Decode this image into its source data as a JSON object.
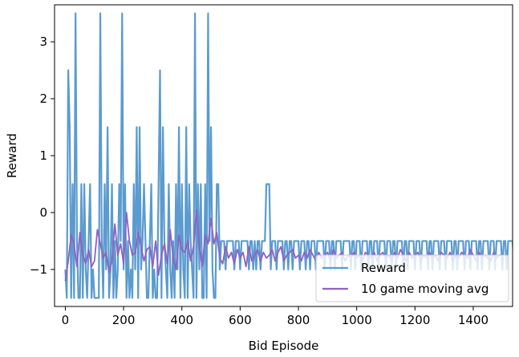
{
  "chart_data": {
    "type": "line",
    "xlabel": "Bid Episode",
    "ylabel": "Reward",
    "xlim": [
      -37,
      1535
    ],
    "ylim": [
      -1.65,
      3.65
    ],
    "xticks": [
      0,
      200,
      400,
      600,
      800,
      1000,
      1200,
      1400
    ],
    "yticks": [
      -1,
      0,
      1,
      2,
      3
    ],
    "legend_position": "lower-right",
    "colors": {
      "reward": "#5b9bcf",
      "moving_avg": "#9061c2"
    },
    "series": [
      {
        "name": "Reward",
        "x_start": 0,
        "x_step": 5,
        "values": [
          -1,
          -1.5,
          2.5,
          1.5,
          -1.5,
          0.5,
          -1.5,
          3.5,
          -0.5,
          -1.5,
          -1.5,
          0.5,
          -1.5,
          0.5,
          -1,
          -1.5,
          -0.5,
          0.5,
          -1.5,
          -1,
          -1.5,
          -1.5,
          -1.5,
          -1.5,
          3.5,
          -0.5,
          -1.5,
          0.5,
          -1,
          1.5,
          -1.5,
          -1,
          0.5,
          -1.5,
          -0.5,
          -1.5,
          -1,
          0.5,
          -0.5,
          3.5,
          -1,
          0.5,
          -1.5,
          -0.5,
          -1.5,
          -1,
          -1.5,
          0.5,
          -1,
          1.5,
          -1.5,
          1.5,
          -1,
          -0.5,
          0.5,
          -0.5,
          -1.5,
          -1.5,
          -0.5,
          0.5,
          -1.5,
          -1,
          -1.5,
          -1.5,
          0.5,
          2.5,
          -1.5,
          1.5,
          -0.5,
          -1,
          -1.5,
          0.5,
          -1,
          -1.5,
          -0.5,
          -1.5,
          0.5,
          -1,
          1.5,
          -1.5,
          0.5,
          -1,
          -1.5,
          1.5,
          -1.5,
          0.5,
          -0.5,
          -1,
          -1.5,
          3.5,
          -1.5,
          0.5,
          -1,
          0.5,
          -1.5,
          -1.5,
          0.5,
          -1.5,
          3.5,
          -0.5,
          1.5,
          -1,
          -1.5,
          -1.5,
          0.5,
          0.5,
          -1,
          -0.5,
          -0.5,
          -0.5,
          -1,
          -0.5,
          -0.5,
          -0.5,
          -0.5,
          -0.5,
          -1,
          -0.5,
          -0.5,
          -0.5,
          -1,
          -0.5,
          -0.5,
          -0.5,
          -0.5,
          -0.5,
          -1,
          -0.5,
          -0.5,
          -1,
          -0.5,
          -1,
          -0.5,
          -0.5,
          -1,
          -0.5,
          -0.5,
          -0.5,
          0.5,
          0.5,
          0.5,
          -1,
          -0.5,
          -0.5,
          -0.5,
          -1,
          -0.5,
          -0.5,
          -0.5,
          -0.5,
          -1,
          -0.5,
          -0.5,
          -1,
          -0.5,
          -0.5,
          -1,
          -0.5,
          -0.5,
          -0.5,
          -0.5,
          -1,
          -0.5,
          -0.5,
          -0.5,
          -1,
          -0.5,
          -0.5,
          -1,
          -0.5,
          -0.5,
          -0.5,
          -1,
          -0.5,
          -0.5,
          -0.5,
          -0.5,
          -0.5,
          -1,
          -0.5,
          -0.5,
          -0.5,
          -1,
          -0.5,
          -0.5,
          -1,
          -0.5,
          -0.5,
          -0.5,
          -0.5,
          -1,
          -0.5,
          -0.5,
          -0.5,
          -0.5,
          -0.5,
          -1,
          -0.5,
          -0.5,
          -1,
          -0.5,
          -0.5,
          -0.5,
          -1,
          -0.5,
          -0.5,
          -0.5,
          -0.5,
          -1,
          -0.5,
          -0.5,
          -1,
          -0.5,
          -0.5,
          -0.5,
          -1,
          -0.5,
          -0.5,
          -0.5,
          -0.5,
          -1,
          -0.5,
          -0.5,
          -0.5,
          -1,
          -0.5,
          -0.5,
          -1,
          -0.5,
          -0.5,
          -0.5,
          -0.5,
          -1,
          -0.5,
          -0.5,
          -1,
          -0.5,
          -0.5,
          -0.5,
          -0.5,
          -1,
          -0.5,
          -0.5,
          -0.5,
          -1,
          -0.5,
          -0.5,
          -0.5,
          -0.5,
          -1,
          -0.5,
          -0.5,
          -1,
          -0.5,
          -0.5,
          -0.5,
          -0.5,
          -1,
          -0.5,
          -0.5,
          -0.5,
          -1,
          -0.5,
          -0.5,
          -0.5,
          -0.5,
          -1,
          -0.5,
          -0.5,
          -1,
          -0.5,
          -0.5,
          -0.5,
          -0.5,
          -1,
          -0.5,
          -0.5,
          -0.5,
          -1,
          -0.5,
          -0.5,
          -0.5,
          -0.5,
          -1,
          -0.5,
          -0.5,
          -1,
          -0.5,
          -0.5,
          -0.5,
          -0.5,
          -1,
          -0.5,
          -0.5,
          -0.5,
          -1,
          -0.5,
          -0.5,
          -0.5,
          -0.5,
          -1,
          -0.5,
          -0.5,
          -1,
          -0.5,
          -0.5,
          -0.5,
          -0.5,
          -1,
          -0.5,
          -0.5,
          -0.5,
          -1,
          -0.5,
          -0.5,
          -0.5
        ]
      },
      {
        "name": "10 game moving avg",
        "x_start": 0,
        "x_step": 10,
        "values": [
          -1.2,
          -0.85,
          -0.4,
          -0.55,
          -0.95,
          -0.35,
          -0.75,
          -0.9,
          -0.65,
          -0.95,
          -0.85,
          -0.3,
          -0.55,
          -0.8,
          -0.7,
          -1.05,
          -0.85,
          -0.2,
          -0.75,
          -0.55,
          -0.9,
          0.0,
          -0.5,
          -0.75,
          -0.7,
          -0.35,
          -0.6,
          -0.85,
          -0.65,
          -0.6,
          -0.95,
          -0.5,
          -1.1,
          -0.75,
          -0.55,
          -0.9,
          -0.3,
          -0.8,
          -1.0,
          -0.4,
          -0.65,
          -0.7,
          -0.5,
          -0.85,
          -0.6,
          0.05,
          -0.6,
          -0.95,
          -0.4,
          -0.55,
          -0.1,
          -0.55,
          -0.35,
          -0.8,
          -0.9,
          -0.6,
          -0.8,
          -0.7,
          -0.9,
          -0.65,
          -0.8,
          -0.7,
          -0.95,
          -0.6,
          -0.85,
          -0.75,
          -0.65,
          -0.85,
          -0.7,
          -0.8,
          -0.75,
          -0.65,
          -0.85,
          -0.7,
          -0.6,
          -0.85,
          -0.75,
          -0.7,
          -0.65,
          -0.8,
          -0.75,
          -0.85,
          -0.7,
          -0.8,
          -0.65,
          -0.75,
          -0.85,
          -0.7,
          -0.8,
          -0.75,
          -0.7,
          -0.85,
          -0.65,
          -0.8,
          -0.75,
          -0.7,
          -0.85,
          -0.75,
          -0.8,
          -0.7,
          -0.8,
          -0.75,
          -0.85,
          -0.7,
          -0.75,
          -0.8,
          -0.7,
          -0.85,
          -0.75,
          -0.7,
          -0.8,
          -0.75,
          -0.85,
          -0.7,
          -0.8,
          -0.65,
          -0.75,
          -0.85,
          -0.7,
          -0.8,
          -0.75,
          -0.7,
          -0.85,
          -0.75,
          -0.8,
          -0.7,
          -0.8,
          -0.75,
          -0.85,
          -0.7,
          -0.75,
          -0.8,
          -0.7,
          -0.85,
          -0.75,
          -0.8,
          -0.7,
          -0.75,
          -0.8,
          -0.65,
          -0.75,
          -0.85,
          -0.7,
          -0.8,
          -0.75,
          -0.8,
          -0.85,
          -0.7,
          -0.8,
          -0.75,
          -0.75
        ]
      }
    ]
  }
}
